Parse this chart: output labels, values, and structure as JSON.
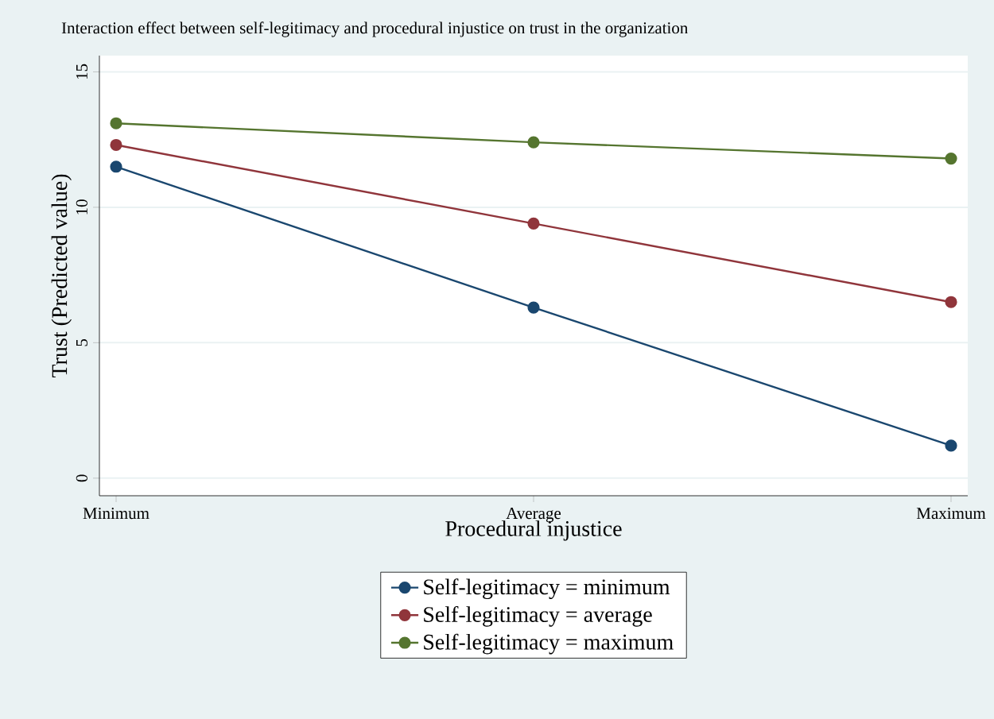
{
  "chart_data": {
    "type": "line",
    "title": "Interaction effect between self-legitimacy and procedural injustice on trust in the organization",
    "xlabel": "Procedural injustice",
    "ylabel": "Trust (Predicted value)",
    "categories": [
      "Minimum",
      "Average",
      "Maximum"
    ],
    "series": [
      {
        "name": "Self-legitimacy = minimum",
        "color": "#1a476f",
        "values": [
          11.5,
          6.3,
          1.2
        ]
      },
      {
        "name": "Self-legitimacy = average",
        "color": "#90353b",
        "values": [
          12.3,
          9.4,
          6.5
        ]
      },
      {
        "name": "Self-legitimacy = maximum",
        "color": "#55752f",
        "values": [
          13.1,
          12.4,
          11.8
        ]
      }
    ],
    "ylim": [
      -0.65,
      15.6
    ],
    "yticks": [
      0,
      5,
      10,
      15
    ],
    "grid": "y",
    "legend": "bottom",
    "marker": "circle",
    "line_style": "solid"
  }
}
